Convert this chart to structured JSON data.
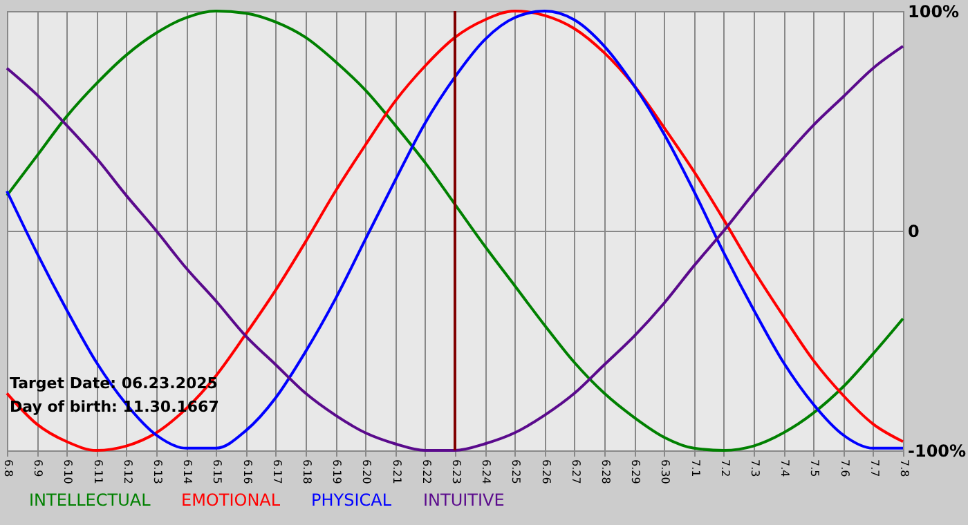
{
  "chart_data": {
    "type": "line",
    "categories": [
      "6.8",
      "6.9",
      "6.10",
      "6.11",
      "6.12",
      "6.13",
      "6.14",
      "6.15",
      "6.16",
      "6.17",
      "6.18",
      "6.19",
      "6.20",
      "6.21",
      "6.22",
      "6.23",
      "6.24",
      "6.25",
      "6.26",
      "6.27",
      "6.28",
      "6.29",
      "6.30",
      "7.1",
      "7.2",
      "7.3",
      "7.4",
      "7.5",
      "7.6",
      "7.7",
      "7.8"
    ],
    "series": [
      {
        "name": "INTELLECTUAL",
        "color": "#008000",
        "values": [
          16,
          34,
          52,
          67,
          80,
          90,
          97,
          100,
          99,
          95,
          88,
          77,
          64,
          48,
          31,
          12,
          -7,
          -25,
          -43,
          -60,
          -74,
          -85,
          -94,
          -99,
          -100,
          -98,
          -92,
          -83,
          -71,
          -56,
          -40
        ]
      },
      {
        "name": "EMOTIONAL",
        "color": "#ff0000",
        "values": [
          -74,
          -88,
          -96,
          -100,
          -98,
          -92,
          -81,
          -66,
          -47,
          -27,
          -5,
          18,
          39,
          59,
          75,
          88,
          96,
          100,
          98,
          92,
          81,
          66,
          47,
          27,
          5,
          -18,
          -39,
          -59,
          -75,
          -88,
          -96
        ]
      },
      {
        "name": "PHYSICAL",
        "color": "#0000ff",
        "values": [
          18,
          -10,
          -36,
          -60,
          -79,
          -93,
          -99,
          -99,
          -91,
          -76,
          -55,
          -31,
          -4,
          23,
          49,
          70,
          87,
          97,
          100,
          96,
          84,
          66,
          44,
          18,
          -10,
          -36,
          -60,
          -79,
          -93,
          -99,
          -99
        ]
      },
      {
        "name": "INTUITIVE",
        "color": "#5a0a8c",
        "values": [
          74,
          62,
          48,
          33,
          16,
          0,
          -17,
          -32,
          -48,
          -61,
          -74,
          -84,
          -92,
          -97,
          -100,
          -100,
          -97,
          -92,
          -84,
          -74,
          -61,
          -48,
          -33,
          -16,
          0,
          17,
          33,
          48,
          61,
          74,
          84
        ]
      }
    ],
    "ylim": [
      -100,
      100
    ],
    "yticks": [
      {
        "value": -100,
        "label": "-100%"
      },
      0,
      {
        "value": 100,
        "label": "100%"
      }
    ],
    "grid": true,
    "legend": "bottom left",
    "ref_lines": [
      {
        "axis": "x",
        "value": "6.23",
        "color": "#800000"
      }
    ],
    "annotations": [
      "Target Date: 06.23.2025",
      "Day of birth: 11.30.1667"
    ]
  }
}
